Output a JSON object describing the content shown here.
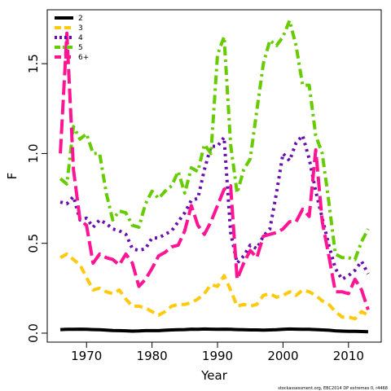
{
  "chart_data": {
    "type": "line",
    "xlabel": "Year",
    "ylabel": "F",
    "xlim": [
      1964,
      2015
    ],
    "ylim": [
      -0.05,
      1.8
    ],
    "x_ticks": [
      1970,
      1980,
      1990,
      2000,
      2010
    ],
    "y_ticks": [
      0.0,
      0.5,
      1.0,
      1.5
    ],
    "y_tick_labels": [
      "0.0",
      "0.5",
      "1.0",
      "1.5"
    ],
    "legend_position": "top-left",
    "footnote": "stockassessment.org, EBC2014 DP extremes 0, r4468",
    "x": [
      1966,
      1967,
      1968,
      1969,
      1970,
      1971,
      1972,
      1973,
      1974,
      1975,
      1976,
      1977,
      1978,
      1979,
      1980,
      1981,
      1982,
      1983,
      1984,
      1985,
      1986,
      1987,
      1988,
      1989,
      1990,
      1991,
      1992,
      1993,
      1994,
      1995,
      1996,
      1997,
      1998,
      1999,
      2000,
      2001,
      2002,
      2003,
      2004,
      2005,
      2006,
      2007,
      2008,
      2009,
      2010,
      2011,
      2012,
      2013
    ],
    "series": [
      {
        "name": "2",
        "color": "#000000",
        "dash": "solid",
        "values": [
          0.02,
          0.021,
          0.021,
          0.022,
          0.021,
          0.02,
          0.019,
          0.017,
          0.015,
          0.014,
          0.013,
          0.011,
          0.012,
          0.014,
          0.014,
          0.014,
          0.016,
          0.018,
          0.019,
          0.02,
          0.022,
          0.021,
          0.023,
          0.022,
          0.021,
          0.022,
          0.021,
          0.02,
          0.019,
          0.018,
          0.018,
          0.017,
          0.018,
          0.019,
          0.021,
          0.023,
          0.022,
          0.021,
          0.021,
          0.02,
          0.018,
          0.016,
          0.013,
          0.011,
          0.01,
          0.01,
          0.009,
          0.008
        ]
      },
      {
        "name": "3",
        "color": "#ffc90e",
        "dash": "dashed",
        "values": [
          0.42,
          0.44,
          0.41,
          0.38,
          0.31,
          0.24,
          0.25,
          0.23,
          0.22,
          0.24,
          0.19,
          0.15,
          0.15,
          0.14,
          0.12,
          0.1,
          0.12,
          0.15,
          0.16,
          0.16,
          0.17,
          0.19,
          0.22,
          0.27,
          0.26,
          0.32,
          0.24,
          0.15,
          0.16,
          0.15,
          0.16,
          0.21,
          0.22,
          0.2,
          0.21,
          0.23,
          0.21,
          0.24,
          0.23,
          0.21,
          0.18,
          0.16,
          0.12,
          0.09,
          0.09,
          0.08,
          0.12,
          0.1
        ]
      },
      {
        "name": "4",
        "color": "#6a0dad",
        "dash": "dotted",
        "values": [
          0.73,
          0.72,
          0.76,
          0.63,
          0.64,
          0.59,
          0.63,
          0.61,
          0.58,
          0.57,
          0.55,
          0.47,
          0.46,
          0.47,
          0.53,
          0.53,
          0.55,
          0.57,
          0.62,
          0.67,
          0.74,
          0.75,
          0.91,
          1.04,
          1.04,
          1.09,
          0.56,
          0.39,
          0.43,
          0.49,
          0.47,
          0.54,
          0.58,
          0.78,
          1.0,
          0.96,
          1.06,
          1.1,
          0.97,
          0.79,
          0.64,
          0.49,
          0.36,
          0.3,
          0.32,
          0.35,
          0.4,
          0.33
        ]
      },
      {
        "name": "5",
        "color": "#66cc00",
        "dash": "dashdot",
        "values": [
          0.86,
          0.83,
          1.15,
          1.08,
          1.11,
          1.0,
          1.0,
          0.78,
          0.63,
          0.68,
          0.67,
          0.6,
          0.59,
          0.72,
          0.79,
          0.75,
          0.79,
          0.82,
          0.9,
          0.78,
          0.92,
          0.9,
          1.05,
          1.0,
          1.55,
          1.65,
          1.05,
          0.78,
          0.91,
          0.97,
          1.24,
          1.5,
          1.63,
          1.6,
          1.65,
          1.74,
          1.6,
          1.38,
          1.38,
          1.1,
          1.0,
          0.73,
          0.44,
          0.42,
          0.42,
          0.41,
          0.51,
          0.58
        ]
      },
      {
        "name": "6+",
        "color": "#ff1493",
        "dash": "longdash",
        "values": [
          1.0,
          1.67,
          0.91,
          0.63,
          0.6,
          0.39,
          0.44,
          0.42,
          0.41,
          0.38,
          0.44,
          0.39,
          0.26,
          0.3,
          0.36,
          0.43,
          0.45,
          0.48,
          0.49,
          0.57,
          0.71,
          0.6,
          0.55,
          0.62,
          0.71,
          0.8,
          0.82,
          0.3,
          0.39,
          0.46,
          0.42,
          0.54,
          0.55,
          0.56,
          0.58,
          0.62,
          0.62,
          0.69,
          0.65,
          1.02,
          0.62,
          0.43,
          0.23,
          0.23,
          0.22,
          0.3,
          0.24,
          0.13
        ]
      }
    ]
  }
}
